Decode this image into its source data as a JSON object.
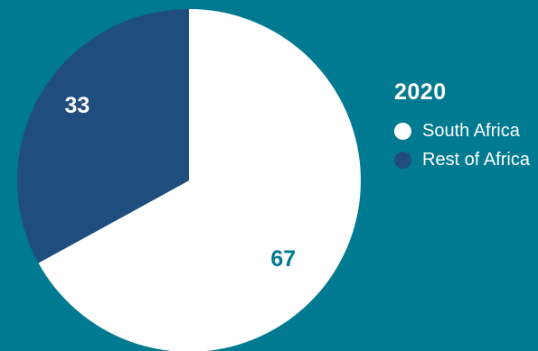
{
  "chart_data": {
    "type": "pie",
    "title": "2020",
    "categories": [
      "South Africa",
      "Rest of Africa"
    ],
    "values": [
      67,
      33
    ],
    "data_labels": [
      "67",
      "33"
    ],
    "colors": [
      "#FFFFFF",
      "#1F4E7E"
    ],
    "label_colors": [
      "#007A90",
      "#FFFFFF"
    ],
    "legend_placement": "right"
  },
  "colors": {
    "background": "#007A90"
  }
}
